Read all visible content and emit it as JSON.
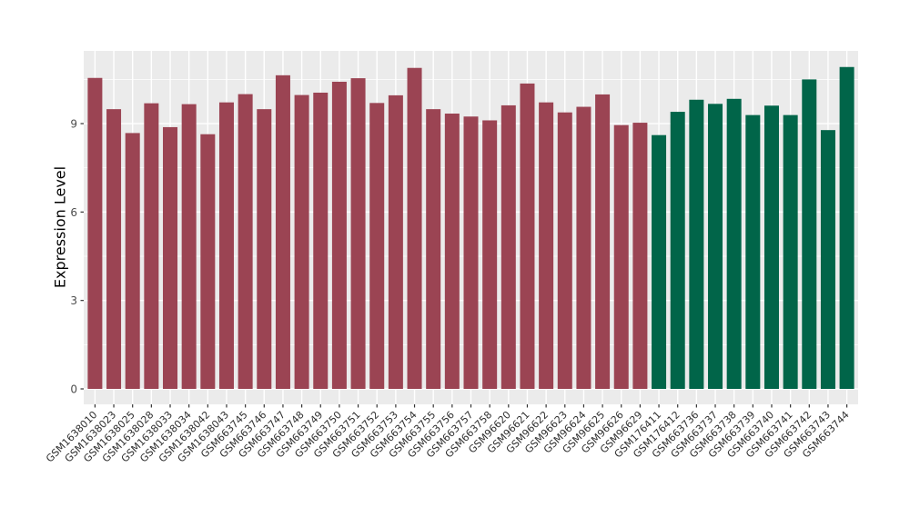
{
  "page": {
    "background": "#ffffff"
  },
  "chart_data": {
    "type": "bar",
    "title": "",
    "xlabel": "",
    "ylabel": "Expression Level",
    "ylim": [
      0,
      11.5
    ],
    "yticks": [
      0,
      3,
      6,
      9
    ],
    "minor_gridlines": [
      1.5,
      4.5,
      7.5,
      10.5
    ],
    "grid": true,
    "legend_position": "none",
    "panel_background": "#EBEBEB",
    "major_grid_color": "#FFFFFF",
    "minor_grid_color": "#FFFFFF",
    "axis_text_color": "#4D4D4D",
    "tick_mark_color": "#333333",
    "categories": [
      "GSM1638010",
      "GSM1638023",
      "GSM1638025",
      "GSM1638028",
      "GSM1638033",
      "GSM1638034",
      "GSM1638042",
      "GSM1638043",
      "GSM663745",
      "GSM663746",
      "GSM663747",
      "GSM663748",
      "GSM663749",
      "GSM663750",
      "GSM663751",
      "GSM663752",
      "GSM663753",
      "GSM663754",
      "GSM663755",
      "GSM663756",
      "GSM663757",
      "GSM663758",
      "GSM96620",
      "GSM96621",
      "GSM96622",
      "GSM96623",
      "GSM96624",
      "GSM96625",
      "GSM96626",
      "GSM96629",
      "GSM176411",
      "GSM176412",
      "GSM663736",
      "GSM663737",
      "GSM663738",
      "GSM663739",
      "GSM663740",
      "GSM663741",
      "GSM663742",
      "GSM663743",
      "GSM663744"
    ],
    "values": [
      10.55,
      9.49,
      8.68,
      9.69,
      8.88,
      9.66,
      8.64,
      9.72,
      10.0,
      9.49,
      10.64,
      9.97,
      10.05,
      10.42,
      10.54,
      9.7,
      9.96,
      10.89,
      9.49,
      9.34,
      9.24,
      9.11,
      9.62,
      10.36,
      9.72,
      9.38,
      9.57,
      9.99,
      8.95,
      9.03,
      8.61,
      9.4,
      9.81,
      9.67,
      9.84,
      9.29,
      9.61,
      9.29,
      10.5,
      8.78,
      10.92
    ],
    "bar_color_groups": [
      {
        "name": "group-1",
        "color": "#9B4453",
        "from": 0,
        "to": 29
      },
      {
        "name": "group-2",
        "color": "#016549",
        "from": 30,
        "to": 40
      }
    ]
  }
}
